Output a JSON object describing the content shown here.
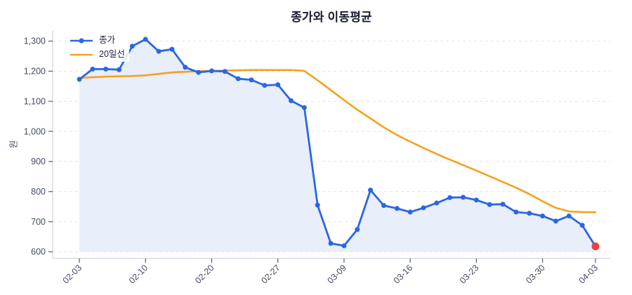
{
  "chart_data": {
    "type": "line",
    "title": "종가와 이동평균",
    "ylabel": "원",
    "ylim": [
      578,
      1335
    ],
    "grid": true,
    "legend_position": "top-left",
    "x_tick_labels": [
      {
        "index": 0,
        "label": "02-03"
      },
      {
        "index": 5,
        "label": "02-10"
      },
      {
        "index": 10,
        "label": "02-20"
      },
      {
        "index": 15,
        "label": "02-27"
      },
      {
        "index": 20,
        "label": "03-09"
      },
      {
        "index": 25,
        "label": "03-16"
      },
      {
        "index": 30,
        "label": "03-23"
      },
      {
        "index": 35,
        "label": "03-30"
      },
      {
        "index": 39,
        "label": "04-03"
      }
    ],
    "y_tick_labels": [
      {
        "value": 600,
        "label": "600"
      },
      {
        "value": 700,
        "label": "700"
      },
      {
        "value": 800,
        "label": "800"
      },
      {
        "value": 900,
        "label": "900"
      },
      {
        "value": 1000,
        "label": "1,000"
      },
      {
        "value": 1100,
        "label": "1,100"
      },
      {
        "value": 1200,
        "label": "1,200"
      },
      {
        "value": 1300,
        "label": "1,300"
      }
    ],
    "series": [
      {
        "name": "종가",
        "style": "line-with-markers-and-area-fill",
        "color": "#2b66e3",
        "area_fill_color": "#e9eefb",
        "values": [
          1173,
          1207,
          1207,
          1205,
          1283,
          1306,
          1266,
          1273,
          1213,
          1196,
          1201,
          1199,
          1175,
          1171,
          1153,
          1155,
          1102,
          1079,
          755,
          628,
          620,
          674,
          805,
          754,
          744,
          732,
          746,
          762,
          780,
          781,
          772,
          757,
          758,
          732,
          728,
          719,
          702,
          719,
          688,
          618
        ]
      },
      {
        "name": "20일선",
        "style": "line",
        "color": "#f6a11c",
        "values": [
          1177,
          1180,
          1182,
          1183,
          1184,
          1186,
          1191,
          1196,
          1198,
          1200,
          1201,
          1202,
          1203,
          1204,
          1204,
          1204,
          1204,
          1201,
          1170,
          1137,
          1104,
          1072,
          1043,
          1014,
          988,
          966,
          945,
          925,
          906,
          888,
          870,
          851,
          832,
          813,
          792,
          768,
          746,
          734,
          732,
          731
        ]
      }
    ],
    "highlight_last_point": {
      "series": "종가",
      "value": 618,
      "x_label": "04-03",
      "color": "#e8443a"
    }
  },
  "style_colors": {
    "background": "#ffffff",
    "gridline": "#e3e4ea",
    "spine": "#c8cbd8",
    "tick_mark": "#555a70",
    "tick_text": "#454b63",
    "title_text": "#181c30"
  }
}
